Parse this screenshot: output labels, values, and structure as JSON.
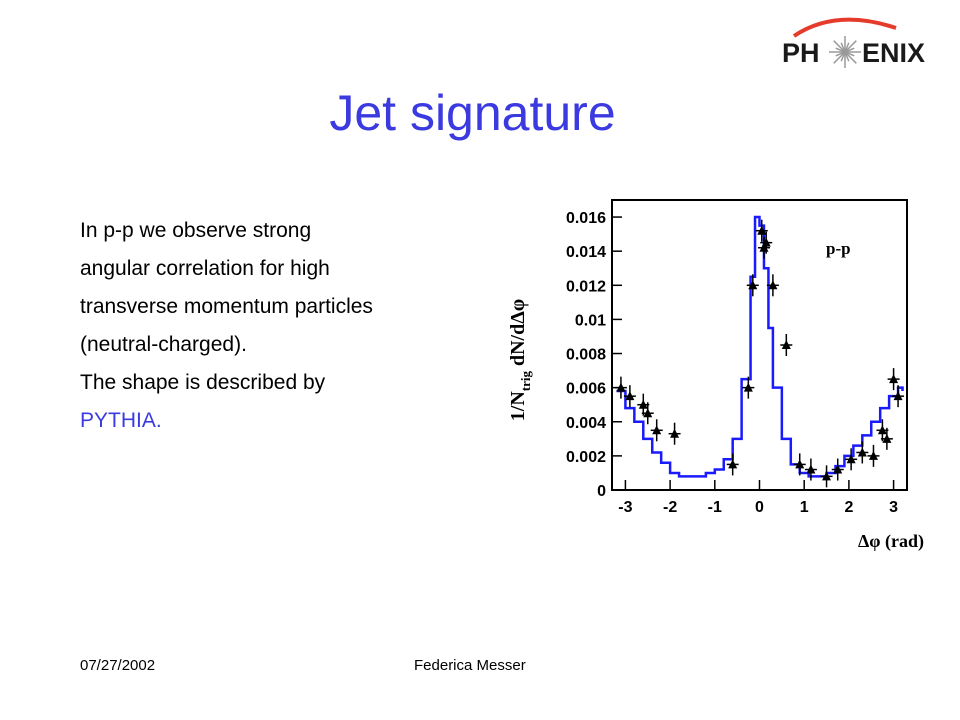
{
  "logo": {
    "text_left": "PH",
    "text_right": "ENIX",
    "star_color": "#999999",
    "arc_color": "#e53b2a"
  },
  "slide": {
    "title": "Jet signature",
    "body_lines": [
      "In p-p we observe strong",
      "angular correlation for high",
      "transverse momentum particles",
      "(neutral-charged).",
      "The shape is described by",
      "PYTHIA."
    ],
    "accent_color": "#3a3ae0"
  },
  "chart_data": {
    "type": "line",
    "annotation": "p-p",
    "ylabel": {
      "main": "1/N",
      "sub": "trig",
      "rest": " dN/dΔφ"
    },
    "xlabel": "Δφ (rad)",
    "xlim": [
      -3.3,
      3.3
    ],
    "ylim": [
      0,
      0.017
    ],
    "x_ticks": [
      "-3",
      "-2",
      "-1",
      "0",
      "1",
      "2",
      "3"
    ],
    "y_ticks": [
      "0",
      "0.002",
      "0.004",
      "0.006",
      "0.008",
      "0.01",
      "0.012",
      "0.014",
      "0.016"
    ],
    "series": [
      {
        "style": "histogram",
        "color": "#1a1aff",
        "x": [
          -3.2,
          -3.0,
          -2.8,
          -2.6,
          -2.4,
          -2.2,
          -2.0,
          -1.8,
          -1.6,
          -1.4,
          -1.2,
          -1.0,
          -0.8,
          -0.6,
          -0.4,
          -0.2,
          -0.1,
          0.0,
          0.1,
          0.2,
          0.3,
          0.5,
          0.7,
          0.9,
          1.1,
          1.3,
          1.5,
          1.7,
          1.9,
          2.1,
          2.3,
          2.5,
          2.7,
          2.9,
          3.1,
          3.2
        ],
        "y": [
          0.0058,
          0.0048,
          0.004,
          0.003,
          0.0022,
          0.0016,
          0.001,
          0.0008,
          0.0008,
          0.0008,
          0.001,
          0.0012,
          0.0018,
          0.003,
          0.0065,
          0.0125,
          0.016,
          0.0155,
          0.013,
          0.0095,
          0.006,
          0.003,
          0.0015,
          0.001,
          0.0008,
          0.0008,
          0.001,
          0.0014,
          0.002,
          0.0026,
          0.0032,
          0.004,
          0.0048,
          0.0055,
          0.006,
          0.0058
        ]
      },
      {
        "style": "points",
        "color": "#000000",
        "x": [
          -3.1,
          -2.9,
          -2.6,
          -2.5,
          -2.3,
          -1.9,
          -0.6,
          -0.25,
          -0.15,
          0.05,
          0.1,
          0.15,
          0.3,
          0.6,
          0.9,
          1.15,
          1.5,
          1.75,
          2.05,
          2.3,
          2.55,
          2.75,
          2.85,
          3.0,
          3.1
        ],
        "y": [
          0.006,
          0.0055,
          0.005,
          0.0045,
          0.0035,
          0.0033,
          0.0015,
          0.006,
          0.012,
          0.0152,
          0.0142,
          0.0145,
          0.012,
          0.0085,
          0.0015,
          0.0012,
          0.0008,
          0.0012,
          0.0018,
          0.0022,
          0.002,
          0.0035,
          0.003,
          0.0065,
          0.0055
        ]
      }
    ],
    "grid": false
  },
  "footer": {
    "date": "07/27/2002",
    "author": "Federica Messer"
  }
}
